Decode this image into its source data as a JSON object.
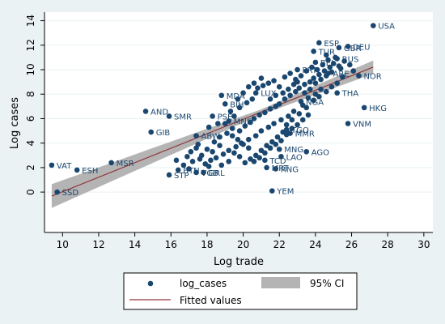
{
  "chart_data": {
    "type": "scatter",
    "xlabel": "Log trade",
    "ylabel": "Log cases",
    "xlim": [
      9,
      30.5
    ],
    "ylim": [
      -3.3,
      14.7
    ],
    "xticks": [
      "10",
      "12",
      "14",
      "16",
      "18",
      "20",
      "22",
      "24",
      "26",
      "28",
      "30"
    ],
    "yticks": [
      "0",
      "2",
      "4",
      "6",
      "8",
      "10",
      "12",
      "14"
    ],
    "grid": true,
    "legend_position": "bottom",
    "colors": {
      "marker": "#1a476f",
      "fit_line": "#90353b",
      "ci_band": "#b4b4b4",
      "plot_bg": "#ffffff",
      "outer_bg": "#eaf2f3"
    },
    "labeled_points": [
      {
        "label": "USA",
        "x": 27.2,
        "y": 13.6
      },
      {
        "label": "ESP",
        "x": 24.2,
        "y": 12.2
      },
      {
        "label": "DEU",
        "x": 25.8,
        "y": 11.9
      },
      {
        "label": "GBR",
        "x": 25.3,
        "y": 11.8
      },
      {
        "label": "TUR",
        "x": 23.9,
        "y": 11.5
      },
      {
        "label": "RUS",
        "x": 25.2,
        "y": 10.9
      },
      {
        "label": "BEL",
        "x": 24.0,
        "y": 10.6
      },
      {
        "label": "PRT",
        "x": 23.0,
        "y": 10.0
      },
      {
        "label": "NOR",
        "x": 26.4,
        "y": 9.5
      },
      {
        "label": "ARE",
        "x": 24.7,
        "y": 9.7
      },
      {
        "label": "NGA",
        "x": 23.2,
        "y": 7.4
      },
      {
        "label": "THA",
        "x": 25.2,
        "y": 8.1
      },
      {
        "label": "HKG",
        "x": 26.7,
        "y": 6.9
      },
      {
        "label": "VNM",
        "x": 25.8,
        "y": 5.6
      },
      {
        "label": "MMR",
        "x": 22.6,
        "y": 4.8
      },
      {
        "label": "AGO",
        "x": 23.5,
        "y": 3.3
      },
      {
        "label": "MNG",
        "x": 22.0,
        "y": 3.5
      },
      {
        "label": "LAO",
        "x": 22.1,
        "y": 2.9
      },
      {
        "label": "TGO",
        "x": 22.4,
        "y": 5.1
      },
      {
        "label": "TCD",
        "x": 21.2,
        "y": 2.6
      },
      {
        "label": "MRT",
        "x": 21.3,
        "y": 2.0
      },
      {
        "label": "RNG",
        "x": 21.8,
        "y": 1.9
      },
      {
        "label": "YEM",
        "x": 21.6,
        "y": 0.1
      },
      {
        "label": "LUX",
        "x": 20.7,
        "y": 8.1
      },
      {
        "label": "MDA",
        "x": 18.8,
        "y": 7.9
      },
      {
        "label": "BIH",
        "x": 19.0,
        "y": 7.2
      },
      {
        "label": "AND",
        "x": 14.6,
        "y": 6.6
      },
      {
        "label": "SMR",
        "x": 15.9,
        "y": 6.2
      },
      {
        "label": "PSE",
        "x": 18.3,
        "y": 6.2
      },
      {
        "label": "MNE",
        "x": 19.2,
        "y": 5.8
      },
      {
        "label": "GIB",
        "x": 14.9,
        "y": 4.9
      },
      {
        "label": "ABW",
        "x": 17.4,
        "y": 4.6
      },
      {
        "label": "MSR",
        "x": 12.7,
        "y": 2.4
      },
      {
        "label": "VAT",
        "x": 9.4,
        "y": 2.2
      },
      {
        "label": "ESH",
        "x": 10.8,
        "y": 1.8
      },
      {
        "label": "BTN",
        "x": 16.4,
        "y": 1.8
      },
      {
        "label": "STP",
        "x": 15.9,
        "y": 1.4
      },
      {
        "label": "VGB",
        "x": 17.4,
        "y": 1.6
      },
      {
        "label": "GRL",
        "x": 17.8,
        "y": 1.6
      },
      {
        "label": "SSD",
        "x": 9.7,
        "y": 0.0
      }
    ],
    "points": [
      {
        "x": 19.4,
        "y": 5.2
      },
      {
        "x": 19.8,
        "y": 5.0
      },
      {
        "x": 20.1,
        "y": 5.4
      },
      {
        "x": 20.4,
        "y": 5.7
      },
      {
        "x": 20.6,
        "y": 6.0
      },
      {
        "x": 20.9,
        "y": 6.3
      },
      {
        "x": 21.2,
        "y": 6.5
      },
      {
        "x": 21.5,
        "y": 6.8
      },
      {
        "x": 21.8,
        "y": 7.0
      },
      {
        "x": 22.0,
        "y": 7.2
      },
      {
        "x": 22.3,
        "y": 7.6
      },
      {
        "x": 22.6,
        "y": 7.9
      },
      {
        "x": 22.9,
        "y": 8.2
      },
      {
        "x": 23.1,
        "y": 8.5
      },
      {
        "x": 23.4,
        "y": 8.8
      },
      {
        "x": 23.7,
        "y": 9.0
      },
      {
        "x": 23.9,
        "y": 9.3
      },
      {
        "x": 24.2,
        "y": 9.6
      },
      {
        "x": 24.5,
        "y": 9.9
      },
      {
        "x": 24.8,
        "y": 10.2
      },
      {
        "x": 25.0,
        "y": 10.5
      },
      {
        "x": 25.4,
        "y": 10.1
      },
      {
        "x": 25.6,
        "y": 10.7
      },
      {
        "x": 24.6,
        "y": 11.2
      },
      {
        "x": 24.3,
        "y": 8.4
      },
      {
        "x": 24.0,
        "y": 8.0
      },
      {
        "x": 23.6,
        "y": 7.7
      },
      {
        "x": 23.3,
        "y": 7.1
      },
      {
        "x": 22.8,
        "y": 6.6
      },
      {
        "x": 22.5,
        "y": 6.2
      },
      {
        "x": 22.1,
        "y": 5.9
      },
      {
        "x": 21.7,
        "y": 5.6
      },
      {
        "x": 21.4,
        "y": 5.3
      },
      {
        "x": 21.0,
        "y": 5.0
      },
      {
        "x": 20.7,
        "y": 4.6
      },
      {
        "x": 20.3,
        "y": 4.3
      },
      {
        "x": 19.9,
        "y": 4.0
      },
      {
        "x": 19.6,
        "y": 3.7
      },
      {
        "x": 19.2,
        "y": 3.4
      },
      {
        "x": 18.9,
        "y": 3.1
      },
      {
        "x": 18.5,
        "y": 2.8
      },
      {
        "x": 18.2,
        "y": 2.6
      },
      {
        "x": 17.9,
        "y": 2.3
      },
      {
        "x": 17.6,
        "y": 2.7
      },
      {
        "x": 18.0,
        "y": 3.5
      },
      {
        "x": 18.4,
        "y": 4.1
      },
      {
        "x": 18.7,
        "y": 4.5
      },
      {
        "x": 19.1,
        "y": 4.8
      },
      {
        "x": 19.5,
        "y": 6.2
      },
      {
        "x": 19.8,
        "y": 6.9
      },
      {
        "x": 20.2,
        "y": 7.3
      },
      {
        "x": 20.5,
        "y": 7.6
      },
      {
        "x": 20.8,
        "y": 8.5
      },
      {
        "x": 21.1,
        "y": 8.7
      },
      {
        "x": 21.4,
        "y": 8.9
      },
      {
        "x": 21.7,
        "y": 9.1
      },
      {
        "x": 22.0,
        "y": 8.6
      },
      {
        "x": 22.3,
        "y": 9.4
      },
      {
        "x": 22.6,
        "y": 9.7
      },
      {
        "x": 22.9,
        "y": 9.2
      },
      {
        "x": 23.2,
        "y": 9.5
      },
      {
        "x": 23.5,
        "y": 9.9
      },
      {
        "x": 23.8,
        "y": 10.2
      },
      {
        "x": 24.1,
        "y": 10.0
      },
      {
        "x": 24.4,
        "y": 10.4
      },
      {
        "x": 24.7,
        "y": 10.8
      },
      {
        "x": 25.1,
        "y": 11.0
      },
      {
        "x": 25.9,
        "y": 10.4
      },
      {
        "x": 26.1,
        "y": 9.9
      },
      {
        "x": 25.5,
        "y": 9.4
      },
      {
        "x": 25.2,
        "y": 8.9
      },
      {
        "x": 24.9,
        "y": 8.6
      },
      {
        "x": 24.6,
        "y": 8.2
      },
      {
        "x": 24.2,
        "y": 7.8
      },
      {
        "x": 23.9,
        "y": 7.5
      },
      {
        "x": 23.5,
        "y": 6.9
      },
      {
        "x": 23.1,
        "y": 6.4
      },
      {
        "x": 22.7,
        "y": 5.9
      },
      {
        "x": 22.4,
        "y": 5.5
      },
      {
        "x": 22.2,
        "y": 4.9
      },
      {
        "x": 21.9,
        "y": 4.5
      },
      {
        "x": 21.6,
        "y": 4.1
      },
      {
        "x": 21.3,
        "y": 3.8
      },
      {
        "x": 21.0,
        "y": 3.4
      },
      {
        "x": 20.7,
        "y": 3.0
      },
      {
        "x": 20.4,
        "y": 2.7
      },
      {
        "x": 20.1,
        "y": 2.4
      },
      {
        "x": 19.8,
        "y": 2.9
      },
      {
        "x": 19.5,
        "y": 3.2
      },
      {
        "x": 19.2,
        "y": 2.5
      },
      {
        "x": 18.8,
        "y": 2.2
      },
      {
        "x": 17.2,
        "y": 2.5
      },
      {
        "x": 16.9,
        "y": 2.9
      },
      {
        "x": 17.1,
        "y": 3.3
      },
      {
        "x": 17.5,
        "y": 3.9
      },
      {
        "x": 18.1,
        "y": 5.3
      },
      {
        "x": 18.6,
        "y": 5.6
      },
      {
        "x": 19.3,
        "y": 6.6
      },
      {
        "x": 19.7,
        "y": 7.6
      },
      {
        "x": 20.0,
        "y": 8.1
      },
      {
        "x": 20.3,
        "y": 8.6
      },
      {
        "x": 20.6,
        "y": 8.9
      },
      {
        "x": 21.0,
        "y": 9.3
      },
      {
        "x": 21.5,
        "y": 7.6
      },
      {
        "x": 21.8,
        "y": 7.9
      },
      {
        "x": 22.2,
        "y": 8.1
      },
      {
        "x": 22.5,
        "y": 8.4
      },
      {
        "x": 22.8,
        "y": 8.8
      },
      {
        "x": 23.0,
        "y": 9.0
      },
      {
        "x": 23.4,
        "y": 8.1
      },
      {
        "x": 23.7,
        "y": 8.4
      },
      {
        "x": 24.0,
        "y": 8.9
      },
      {
        "x": 24.3,
        "y": 9.2
      },
      {
        "x": 24.6,
        "y": 9.5
      },
      {
        "x": 24.9,
        "y": 9.8
      },
      {
        "x": 25.3,
        "y": 10.3
      },
      {
        "x": 23.6,
        "y": 6.3
      },
      {
        "x": 23.3,
        "y": 5.9
      },
      {
        "x": 23.0,
        "y": 5.5
      },
      {
        "x": 22.7,
        "y": 5.2
      },
      {
        "x": 22.4,
        "y": 4.7
      },
      {
        "x": 22.1,
        "y": 4.2
      },
      {
        "x": 21.8,
        "y": 3.9
      },
      {
        "x": 21.5,
        "y": 3.6
      },
      {
        "x": 21.2,
        "y": 3.2
      },
      {
        "x": 20.9,
        "y": 2.8
      },
      {
        "x": 20.6,
        "y": 2.5
      },
      {
        "x": 20.3,
        "y": 3.6
      },
      {
        "x": 20.0,
        "y": 3.9
      },
      {
        "x": 19.7,
        "y": 4.3
      },
      {
        "x": 19.4,
        "y": 4.6
      },
      {
        "x": 19.0,
        "y": 5.6
      },
      {
        "x": 18.7,
        "y": 3.8
      },
      {
        "x": 18.3,
        "y": 3.3
      },
      {
        "x": 18.1,
        "y": 2.1
      },
      {
        "x": 17.7,
        "y": 3.0
      },
      {
        "x": 17.4,
        "y": 3.6
      },
      {
        "x": 16.7,
        "y": 2.2
      },
      {
        "x": 16.3,
        "y": 2.6
      },
      {
        "x": 17.0,
        "y": 1.9
      }
    ],
    "fit": {
      "intercept": -5.89,
      "slope": 0.592
    },
    "ci_halfwidth_at_ends": [
      0.75,
      0.6
    ],
    "legend": [
      {
        "key": "points",
        "label": "log_cases"
      },
      {
        "key": "ci",
        "label": "95% CI"
      },
      {
        "key": "fit",
        "label": "Fitted values"
      }
    ]
  }
}
